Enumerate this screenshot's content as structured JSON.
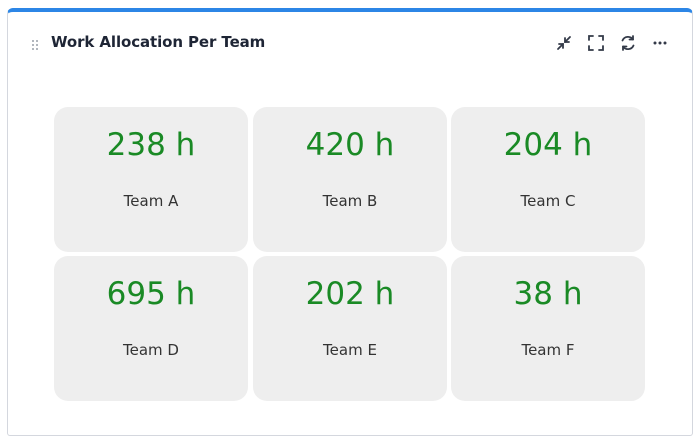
{
  "widget": {
    "title": "Work Allocation Per Team",
    "accent_color": "#2c86e6",
    "value_color": "#1a8a25",
    "toolbar": [
      {
        "name": "collapse-button",
        "icon": "collapse-icon"
      },
      {
        "name": "fullscreen-button",
        "icon": "fullscreen-icon"
      },
      {
        "name": "refresh-button",
        "icon": "refresh-icon"
      },
      {
        "name": "more-options-button",
        "icon": "more-icon"
      }
    ]
  },
  "tiles": [
    {
      "value": "238 h",
      "label": "Team A"
    },
    {
      "value": "420 h",
      "label": "Team B"
    },
    {
      "value": "204 h",
      "label": "Team C"
    },
    {
      "value": "695 h",
      "label": "Team D"
    },
    {
      "value": "202 h",
      "label": "Team E"
    },
    {
      "value": "38 h",
      "label": "Team F"
    }
  ]
}
